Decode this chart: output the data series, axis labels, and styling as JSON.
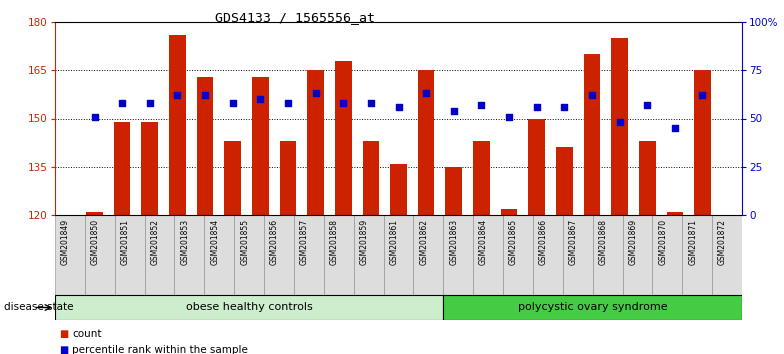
{
  "title": "GDS4133 / 1565556_at",
  "samples": [
    "GSM201849",
    "GSM201850",
    "GSM201851",
    "GSM201852",
    "GSM201853",
    "GSM201854",
    "GSM201855",
    "GSM201856",
    "GSM201857",
    "GSM201858",
    "GSM201859",
    "GSM201861",
    "GSM201862",
    "GSM201863",
    "GSM201864",
    "GSM201865",
    "GSM201866",
    "GSM201867",
    "GSM201868",
    "GSM201869",
    "GSM201870",
    "GSM201871",
    "GSM201872"
  ],
  "counts": [
    121,
    149,
    149,
    176,
    163,
    143,
    163,
    143,
    165,
    168,
    143,
    136,
    165,
    135,
    143,
    122,
    150,
    141,
    170,
    175,
    143,
    121,
    165
  ],
  "percentiles": [
    51,
    58,
    58,
    62,
    62,
    58,
    60,
    58,
    63,
    58,
    58,
    56,
    63,
    54,
    57,
    51,
    56,
    56,
    62,
    48,
    57,
    45,
    62
  ],
  "group1_count": 13,
  "group1_label": "obese healthy controls",
  "group2_label": "polycystic ovary syndrome",
  "ylim_left": [
    120,
    180
  ],
  "ylim_right": [
    0,
    100
  ],
  "yticks_left": [
    120,
    135,
    150,
    165,
    180
  ],
  "yticks_right": [
    0,
    25,
    50,
    75,
    100
  ],
  "bar_color": "#cc2200",
  "dot_color": "#0000cc",
  "group1_color": "#cceecc",
  "group2_color": "#44cc44",
  "label_count": "count",
  "label_percentile": "percentile rank within the sample"
}
